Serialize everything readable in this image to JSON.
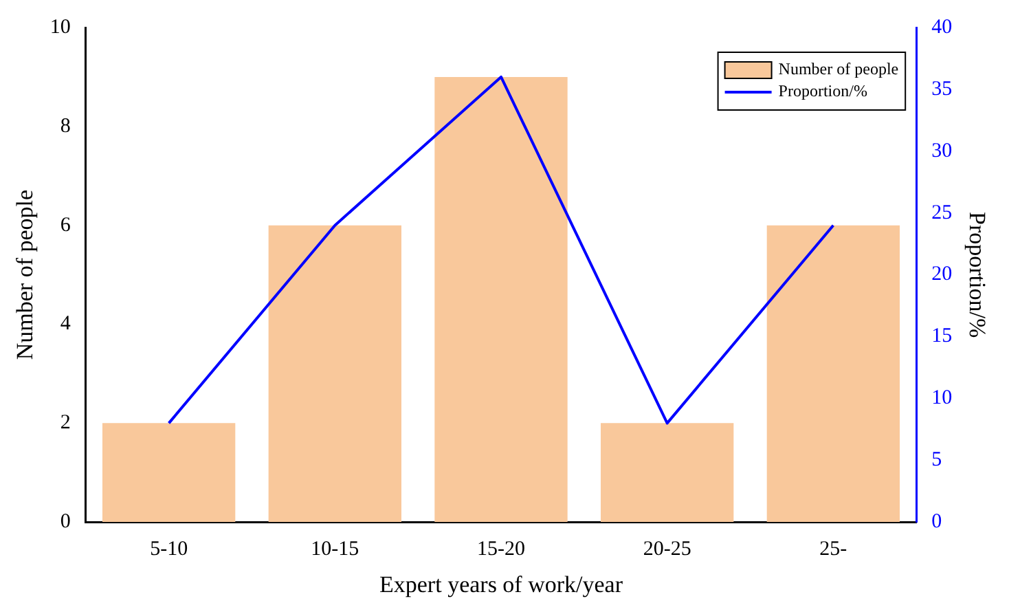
{
  "chart_data": {
    "type": "bar",
    "xlabel": "Expert years of work/year",
    "ylabel": "Number of people",
    "y2label": "Proportion/%",
    "categories": [
      "5-10",
      "10-15",
      "15-20",
      "20-25",
      "25-"
    ],
    "series": [
      {
        "name": "Number of people",
        "color": "#f9c89b",
        "values": [
          2,
          6,
          9,
          2,
          6
        ]
      },
      {
        "name": "Proportion/%",
        "type": "line",
        "axis": "y2",
        "color": "#0000ff",
        "values": [
          8,
          24,
          36,
          8,
          24
        ]
      }
    ],
    "ylim": [
      0,
      10
    ],
    "yticks": [
      0,
      2,
      4,
      6,
      8,
      10
    ],
    "y2lim": [
      0,
      40
    ],
    "y2ticks": [
      0,
      5,
      10,
      15,
      20,
      25,
      30,
      35,
      40
    ],
    "legend": "top right",
    "grid": false,
    "marker": "none"
  }
}
